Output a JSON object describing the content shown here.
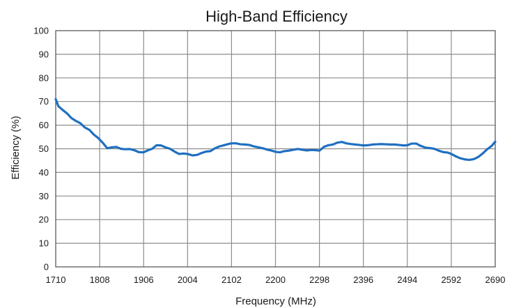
{
  "chart_data": {
    "type": "line",
    "title": "High-Band Efficiency",
    "xlabel": "Frequency (MHz)",
    "ylabel": "Efficiency (%)",
    "xlim": [
      1710,
      2690
    ],
    "ylim": [
      0,
      100
    ],
    "x_ticks": [
      "1710",
      "1808",
      "1906",
      "2004",
      "2102",
      "2200",
      "2298",
      "2396",
      "2494",
      "2592",
      "2690"
    ],
    "y_ticks": [
      "0",
      "10",
      "20",
      "30",
      "40",
      "50",
      "60",
      "70",
      "80",
      "90",
      "100"
    ],
    "grid": true,
    "legend": "none",
    "series": [
      {
        "color": "#1f6fc0",
        "x": [
          1710,
          1716,
          1725,
          1735,
          1745,
          1755,
          1765,
          1775,
          1785,
          1795,
          1805,
          1815,
          1825,
          1835,
          1845,
          1855,
          1865,
          1875,
          1885,
          1895,
          1906,
          1915,
          1925,
          1935,
          1945,
          1955,
          1965,
          1975,
          1985,
          1995,
          2004,
          2015,
          2025,
          2035,
          2045,
          2055,
          2065,
          2075,
          2085,
          2095,
          2102,
          2112,
          2122,
          2132,
          2142,
          2152,
          2162,
          2172,
          2182,
          2192,
          2200,
          2210,
          2220,
          2230,
          2240,
          2250,
          2260,
          2270,
          2280,
          2290,
          2298,
          2308,
          2318,
          2328,
          2338,
          2348,
          2358,
          2368,
          2378,
          2388,
          2396,
          2406,
          2416,
          2426,
          2436,
          2446,
          2456,
          2466,
          2476,
          2486,
          2494,
          2504,
          2514,
          2524,
          2534,
          2544,
          2554,
          2564,
          2574,
          2584,
          2592,
          2602,
          2612,
          2622,
          2632,
          2642,
          2652,
          2662,
          2672,
          2682,
          2690
        ],
        "y": [
          71.0,
          68.0,
          66.5,
          65.0,
          63.0,
          61.8,
          60.8,
          59.0,
          58.0,
          56.0,
          54.5,
          52.5,
          50.2,
          50.6,
          50.8,
          50.0,
          49.8,
          49.9,
          49.4,
          48.6,
          48.5,
          49.3,
          50.0,
          51.5,
          51.4,
          50.6,
          50.0,
          48.8,
          47.8,
          48.0,
          47.8,
          47.2,
          47.4,
          48.2,
          48.8,
          49.0,
          50.2,
          51.0,
          51.5,
          52.0,
          52.3,
          52.3,
          51.9,
          51.8,
          51.6,
          51.0,
          50.6,
          50.2,
          49.6,
          49.2,
          48.7,
          48.5,
          49.0,
          49.2,
          49.6,
          49.9,
          49.6,
          49.3,
          49.5,
          49.4,
          49.2,
          50.8,
          51.5,
          51.8,
          52.6,
          52.9,
          52.3,
          52.0,
          51.8,
          51.6,
          51.4,
          51.5,
          51.8,
          51.9,
          52.0,
          51.9,
          51.8,
          51.8,
          51.6,
          51.4,
          51.5,
          52.2,
          52.2,
          51.2,
          50.5,
          50.3,
          50.0,
          49.2,
          48.6,
          48.4,
          47.8,
          46.8,
          46.0,
          45.5,
          45.3,
          45.6,
          46.5,
          48.0,
          49.8,
          51.2,
          53.0
        ]
      }
    ]
  }
}
